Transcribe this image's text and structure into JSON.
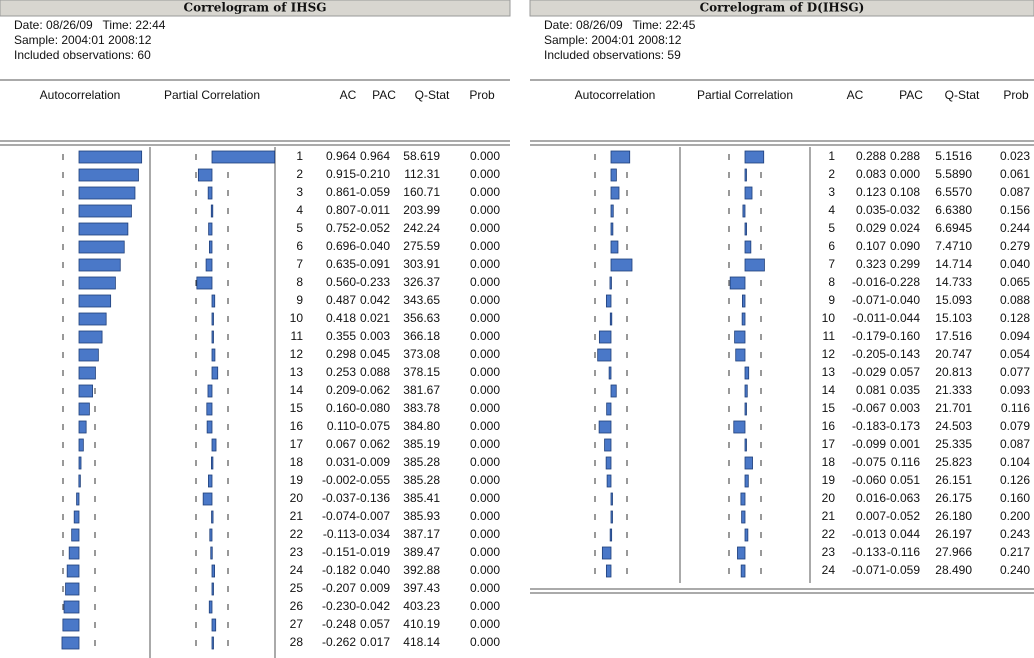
{
  "panels": [
    {
      "title": "Correlogram of IHSG",
      "date": "Date: 08/26/09   Time: 22:44",
      "sample": "Sample: 2004:01 2008:12",
      "observations": "Included observations: 60",
      "columns": [
        "Autocorrelation",
        "Partial Correlation",
        "AC",
        "PAC",
        "Q-Stat",
        "Prob"
      ],
      "rows": [
        [
          1,
          "0.964",
          "0.964",
          "58.619",
          "0.000"
        ],
        [
          2,
          "0.915",
          "-0.210",
          "112.31",
          "0.000"
        ],
        [
          3,
          "0.861",
          "-0.059",
          "160.71",
          "0.000"
        ],
        [
          4,
          "0.807",
          "-0.011",
          "203.99",
          "0.000"
        ],
        [
          5,
          "0.752",
          "-0.052",
          "242.24",
          "0.000"
        ],
        [
          6,
          "0.696",
          "-0.040",
          "275.59",
          "0.000"
        ],
        [
          7,
          "0.635",
          "-0.091",
          "303.91",
          "0.000"
        ],
        [
          8,
          "0.560",
          "-0.233",
          "326.37",
          "0.000"
        ],
        [
          9,
          "0.487",
          "0.042",
          "343.65",
          "0.000"
        ],
        [
          10,
          "0.418",
          "0.021",
          "356.63",
          "0.000"
        ],
        [
          11,
          "0.355",
          "0.003",
          "366.18",
          "0.000"
        ],
        [
          12,
          "0.298",
          "0.045",
          "373.08",
          "0.000"
        ],
        [
          13,
          "0.253",
          "0.088",
          "378.15",
          "0.000"
        ],
        [
          14,
          "0.209",
          "-0.062",
          "381.67",
          "0.000"
        ],
        [
          15,
          "0.160",
          "-0.080",
          "383.78",
          "0.000"
        ],
        [
          16,
          "0.110",
          "-0.075",
          "384.80",
          "0.000"
        ],
        [
          17,
          "0.067",
          "0.062",
          "385.19",
          "0.000"
        ],
        [
          18,
          "0.031",
          "-0.009",
          "385.28",
          "0.000"
        ],
        [
          19,
          "-0.002",
          "-0.055",
          "385.28",
          "0.000"
        ],
        [
          20,
          "-0.037",
          "-0.136",
          "385.41",
          "0.000"
        ],
        [
          21,
          "-0.074",
          "-0.007",
          "385.93",
          "0.000"
        ],
        [
          22,
          "-0.113",
          "-0.034",
          "387.17",
          "0.000"
        ],
        [
          23,
          "-0.151",
          "-0.019",
          "389.47",
          "0.000"
        ],
        [
          24,
          "-0.182",
          "0.040",
          "392.88",
          "0.000"
        ],
        [
          25,
          "-0.207",
          "0.009",
          "397.43",
          "0.000"
        ],
        [
          26,
          "-0.230",
          "-0.042",
          "403.23",
          "0.000"
        ],
        [
          27,
          "-0.248",
          "0.057",
          "410.19",
          "0.000"
        ],
        [
          28,
          "-0.262",
          "0.017",
          "418.14",
          "0.000"
        ]
      ]
    },
    {
      "title": "Correlogram of D(IHSG)",
      "date": "Date: 08/26/09   Time: 22:45",
      "sample": "Sample: 2004:01 2008:12",
      "observations": "Included observations: 59",
      "columns": [
        "Autocorrelation",
        "Partial Correlation",
        "AC",
        "PAC",
        "Q-Stat",
        "Prob"
      ],
      "rows": [
        [
          1,
          "0.288",
          "0.288",
          "5.1516",
          "0.023"
        ],
        [
          2,
          "0.083",
          "0.000",
          "5.5890",
          "0.061"
        ],
        [
          3,
          "0.123",
          "0.108",
          "6.5570",
          "0.087"
        ],
        [
          4,
          "0.035",
          "-0.032",
          "6.6380",
          "0.156"
        ],
        [
          5,
          "0.029",
          "0.024",
          "6.6945",
          "0.244"
        ],
        [
          6,
          "0.107",
          "0.090",
          "7.4710",
          "0.279"
        ],
        [
          7,
          "0.323",
          "0.299",
          "14.714",
          "0.040"
        ],
        [
          8,
          "-0.016",
          "-0.228",
          "14.733",
          "0.065"
        ],
        [
          9,
          "-0.071",
          "-0.040",
          "15.093",
          "0.088"
        ],
        [
          10,
          "-0.011",
          "-0.044",
          "15.103",
          "0.128"
        ],
        [
          11,
          "-0.179",
          "-0.160",
          "17.516",
          "0.094"
        ],
        [
          12,
          "-0.205",
          "-0.143",
          "20.747",
          "0.054"
        ],
        [
          13,
          "-0.029",
          "0.057",
          "20.813",
          "0.077"
        ],
        [
          14,
          "0.081",
          "0.035",
          "21.333",
          "0.093"
        ],
        [
          15,
          "-0.067",
          "0.003",
          "21.701",
          "0.116"
        ],
        [
          16,
          "-0.183",
          "-0.173",
          "24.503",
          "0.079"
        ],
        [
          17,
          "-0.099",
          "0.001",
          "25.335",
          "0.087"
        ],
        [
          18,
          "-0.075",
          "0.116",
          "25.823",
          "0.104"
        ],
        [
          19,
          "-0.060",
          "0.051",
          "26.151",
          "0.126"
        ],
        [
          20,
          "0.016",
          "-0.063",
          "26.175",
          "0.160"
        ],
        [
          21,
          "0.007",
          "-0.052",
          "26.180",
          "0.200"
        ],
        [
          22,
          "-0.013",
          "0.044",
          "26.197",
          "0.243"
        ],
        [
          23,
          "-0.133",
          "-0.116",
          "27.966",
          "0.217"
        ],
        [
          24,
          "-0.071",
          "-0.059",
          "28.490",
          "0.240"
        ]
      ]
    }
  ]
}
